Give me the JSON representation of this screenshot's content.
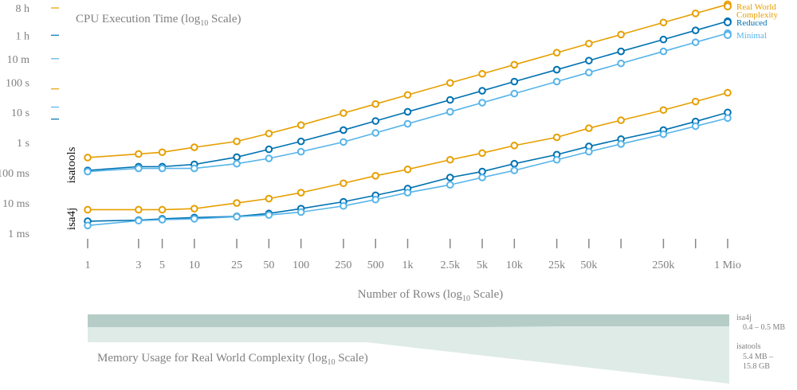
{
  "colors": {
    "real": "#E69F00",
    "reduced": "#0072B2",
    "minimal": "#56B4E9",
    "axis": "#888888",
    "text": "#808080",
    "mem_isa4j": "#b5cdc6",
    "mem_isatools": "#deebe7"
  },
  "chart_data": {
    "type": "scatter",
    "title": "CPU Execution Time (log10 Scale)",
    "title_main": "CPU Execution Time (log",
    "title_sub": "10",
    "title_tail": " Scale)",
    "xlabel": "Number of Rows (log10 Scale)",
    "xlabel_main": "Number of Rows (log",
    "xlabel_sub": "10",
    "xlabel_tail": " Scale)",
    "x_scale": "log",
    "y_scale": "log",
    "ylim_seconds": [
      0.001,
      28800
    ],
    "x_ticks": [
      {
        "value": 1,
        "label": "1"
      },
      {
        "value": 3,
        "label": "3"
      },
      {
        "value": 5,
        "label": "5"
      },
      {
        "value": 10,
        "label": "10"
      },
      {
        "value": 25,
        "label": "25"
      },
      {
        "value": 50,
        "label": "50"
      },
      {
        "value": 100,
        "label": "100"
      },
      {
        "value": 250,
        "label": "250"
      },
      {
        "value": 500,
        "label": "500"
      },
      {
        "value": 1000,
        "label": "1k"
      },
      {
        "value": 2500,
        "label": "2.5k"
      },
      {
        "value": 5000,
        "label": "5k"
      },
      {
        "value": 10000,
        "label": "10k"
      },
      {
        "value": 25000,
        "label": "25k"
      },
      {
        "value": 50000,
        "label": "50k"
      },
      {
        "value": 100000,
        "label": ""
      },
      {
        "value": 250000,
        "label": "250k"
      },
      {
        "value": 500000,
        "label": ""
      },
      {
        "value": 1000000,
        "label": "1 Mio"
      }
    ],
    "y_ticks": [
      {
        "value": 0.001,
        "label": "1 ms"
      },
      {
        "value": 0.01,
        "label": "10 ms"
      },
      {
        "value": 0.1,
        "label": "100 ms"
      },
      {
        "value": 1,
        "label": "1 s"
      },
      {
        "value": 10,
        "label": "10 s"
      },
      {
        "value": 100,
        "label": "100 s"
      },
      {
        "value": 600,
        "label": "10 m"
      },
      {
        "value": 3600,
        "label": "1 h"
      },
      {
        "value": 28800,
        "label": "8 h"
      }
    ],
    "y_reference_ticks": [
      {
        "value": 60,
        "label": ""
      },
      {
        "value": 3600,
        "label": ""
      },
      {
        "value": 28800,
        "label": ""
      },
      {
        "value": 6,
        "label": ""
      },
      {
        "value": 15,
        "label": ""
      }
    ],
    "legend_position": "top-right",
    "legend": [
      {
        "name": "Real World Complexity",
        "line1": "Real World",
        "line2": "Complexity",
        "color": "#E69F00"
      },
      {
        "name": "Reduced",
        "line1": "Reduced",
        "line2": "",
        "color": "#0072B2"
      },
      {
        "name": "Minimal",
        "line1": "Minimal",
        "line2": "",
        "color": "#56B4E9"
      }
    ],
    "tool_labels": [
      {
        "label": "isatools",
        "y": 0.18
      },
      {
        "label": "isa4j",
        "y": 0.003
      }
    ],
    "series": [
      {
        "name": "isatools Real World Complexity",
        "color": "#E69F00",
        "x": [
          1,
          3,
          5,
          10,
          25,
          50,
          100,
          250,
          500,
          1000,
          2500,
          5000,
          10000,
          25000,
          50000,
          100000,
          250000,
          500000,
          1000000
        ],
        "values": [
          0.32,
          0.42,
          0.48,
          0.7,
          1.1,
          2.0,
          3.8,
          9.5,
          19,
          38,
          95,
          190,
          380,
          950,
          1900,
          3800,
          9500,
          19000,
          38000
        ]
      },
      {
        "name": "isatools Reduced",
        "color": "#0072B2",
        "x": [
          1,
          3,
          5,
          10,
          25,
          50,
          100,
          250,
          500,
          1000,
          2500,
          5000,
          10000,
          25000,
          50000,
          100000,
          250000,
          500000,
          1000000
        ],
        "values": [
          0.12,
          0.16,
          0.16,
          0.19,
          0.33,
          0.6,
          1.1,
          2.6,
          5.2,
          10.5,
          26,
          52,
          105,
          260,
          520,
          1050,
          2600,
          5200,
          10500
        ]
      },
      {
        "name": "isatools Minimal",
        "color": "#56B4E9",
        "x": [
          1,
          3,
          5,
          10,
          25,
          50,
          100,
          250,
          500,
          1000,
          2500,
          5000,
          10000,
          25000,
          50000,
          100000,
          250000,
          500000,
          1000000
        ],
        "values": [
          0.11,
          0.14,
          0.14,
          0.14,
          0.2,
          0.3,
          0.5,
          1.05,
          2.1,
          4.2,
          10.5,
          21,
          42,
          105,
          210,
          420,
          1050,
          2100,
          4200
        ]
      },
      {
        "name": "isa4j Real World Complexity",
        "color": "#E69F00",
        "x": [
          1,
          3,
          5,
          10,
          25,
          50,
          100,
          250,
          500,
          1000,
          2500,
          5000,
          10000,
          25000,
          50000,
          100000,
          250000,
          500000,
          1000000
        ],
        "values": [
          0.006,
          0.006,
          0.006,
          0.0065,
          0.01,
          0.014,
          0.022,
          0.045,
          0.08,
          0.13,
          0.27,
          0.45,
          0.8,
          1.5,
          3.0,
          5.5,
          12,
          23,
          45
        ]
      },
      {
        "name": "isa4j Reduced",
        "color": "#0072B2",
        "x": [
          1,
          3,
          5,
          10,
          25,
          50,
          100,
          250,
          500,
          1000,
          2500,
          5000,
          10000,
          25000,
          50000,
          100000,
          250000,
          500000,
          1000000
        ],
        "values": [
          0.0025,
          0.0027,
          0.003,
          0.0033,
          0.0036,
          0.0045,
          0.0065,
          0.011,
          0.018,
          0.03,
          0.07,
          0.11,
          0.2,
          0.4,
          0.75,
          1.3,
          2.6,
          5.0,
          10
        ]
      },
      {
        "name": "isa4j Minimal",
        "color": "#56B4E9",
        "x": [
          1,
          3,
          5,
          10,
          25,
          50,
          100,
          250,
          500,
          1000,
          2500,
          5000,
          10000,
          25000,
          50000,
          100000,
          250000,
          500000,
          1000000
        ],
        "values": [
          0.0018,
          0.0026,
          0.0028,
          0.003,
          0.0035,
          0.004,
          0.005,
          0.008,
          0.013,
          0.022,
          0.04,
          0.07,
          0.12,
          0.27,
          0.5,
          0.9,
          1.9,
          3.5,
          6.5
        ]
      }
    ],
    "memory": {
      "title": "Memory Usage for Real World Complexity (log10 Scale)",
      "title_main": "Memory Usage for Real World Complexity (log",
      "title_sub": "10",
      "title_tail": " Scale)",
      "bands": [
        {
          "tool": "isa4j",
          "range_line1": "0.4 – 0.5 MB",
          "range_line2": "",
          "min_mb": 0.4,
          "max_mb": 0.5
        },
        {
          "tool": "isatools",
          "range_line1": "5.4  MB –",
          "range_line2": "15.8 GB",
          "min_mb": 5.4,
          "max_mb": 15800
        }
      ]
    }
  }
}
